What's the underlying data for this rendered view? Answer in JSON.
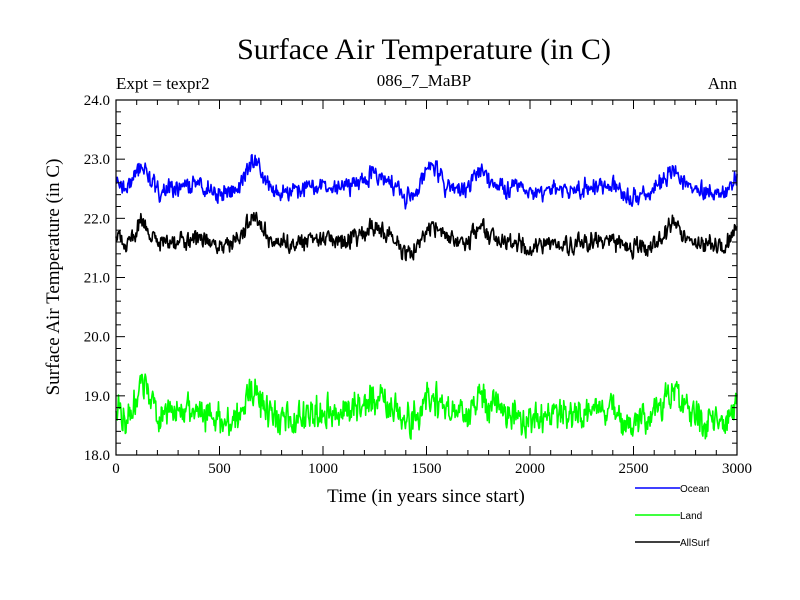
{
  "chart_data": {
    "type": "line",
    "title": "Surface Air Temperature (in C)",
    "subtitle": "086_7_MaBP",
    "annotation_left": "Expt = texpr2",
    "annotation_right": "Ann",
    "xlabel": "Time (in years since start)",
    "ylabel": "Surface Air Temperature (in C)",
    "xlim": [
      0,
      3000
    ],
    "ylim": [
      18.0,
      24.0
    ],
    "xticks": [
      0,
      500,
      1000,
      1500,
      2000,
      2500,
      3000
    ],
    "yticks": [
      18.0,
      19.0,
      20.0,
      21.0,
      22.0,
      23.0,
      24.0
    ],
    "xtick_labels": [
      "0",
      "500",
      "1000",
      "1500",
      "2000",
      "2500",
      "3000"
    ],
    "ytick_labels": [
      "18.0",
      "19.0",
      "20.0",
      "21.0",
      "22.0",
      "23.0",
      "24.0"
    ],
    "grid": false,
    "legend_position": "bottom-right, below plot",
    "series": [
      {
        "name": "Ocean",
        "color": "#0000ff",
        "mean": 22.5,
        "noise": 0.11,
        "x": [
          0,
          50,
          120,
          200,
          300,
          400,
          500,
          600,
          660,
          750,
          850,
          950,
          1050,
          1150,
          1250,
          1350,
          1400,
          1450,
          1525,
          1600,
          1700,
          1750,
          1850,
          1950,
          2000,
          2100,
          2200,
          2300,
          2400,
          2500,
          2600,
          2700,
          2750,
          2850,
          2950,
          3000
        ],
        "values": [
          22.65,
          22.45,
          22.9,
          22.45,
          22.5,
          22.55,
          22.45,
          22.55,
          23.0,
          22.5,
          22.45,
          22.55,
          22.5,
          22.6,
          22.75,
          22.55,
          22.35,
          22.45,
          22.95,
          22.5,
          22.45,
          22.85,
          22.5,
          22.55,
          22.35,
          22.5,
          22.45,
          22.55,
          22.5,
          22.4,
          22.45,
          22.85,
          22.55,
          22.45,
          22.5,
          22.7
        ]
      },
      {
        "name": "Land",
        "color": "#00ff00",
        "mean": 18.7,
        "noise": 0.2,
        "x": [
          0,
          50,
          120,
          200,
          300,
          400,
          500,
          600,
          660,
          750,
          850,
          950,
          1050,
          1150,
          1250,
          1350,
          1400,
          1450,
          1525,
          1600,
          1700,
          1750,
          1850,
          1950,
          2000,
          2100,
          2200,
          2300,
          2400,
          2500,
          2600,
          2700,
          2750,
          2850,
          2950,
          3000
        ],
        "values": [
          18.85,
          18.45,
          19.2,
          18.65,
          18.7,
          18.75,
          18.6,
          18.7,
          19.05,
          18.65,
          18.6,
          18.7,
          18.75,
          18.8,
          18.95,
          18.8,
          18.5,
          18.6,
          19.05,
          18.75,
          18.6,
          18.95,
          18.75,
          18.7,
          18.5,
          18.7,
          18.65,
          18.75,
          18.7,
          18.55,
          18.7,
          19.1,
          18.75,
          18.6,
          18.65,
          18.9
        ]
      },
      {
        "name": "AllSurf",
        "color": "#000000",
        "mean": 21.6,
        "noise": 0.11,
        "x": [
          0,
          50,
          120,
          200,
          300,
          400,
          500,
          600,
          660,
          750,
          850,
          950,
          1050,
          1150,
          1250,
          1350,
          1400,
          1450,
          1525,
          1600,
          1700,
          1750,
          1850,
          1950,
          2000,
          2100,
          2200,
          2300,
          2400,
          2500,
          2600,
          2700,
          2750,
          2850,
          2950,
          3000
        ],
        "values": [
          21.75,
          21.5,
          21.95,
          21.55,
          21.6,
          21.65,
          21.55,
          21.65,
          22.05,
          21.6,
          21.55,
          21.65,
          21.6,
          21.7,
          21.85,
          21.65,
          21.4,
          21.5,
          21.95,
          21.6,
          21.55,
          21.9,
          21.6,
          21.6,
          21.4,
          21.6,
          21.55,
          21.65,
          21.6,
          21.5,
          21.55,
          21.95,
          21.65,
          21.55,
          21.6,
          21.8
        ]
      }
    ]
  }
}
